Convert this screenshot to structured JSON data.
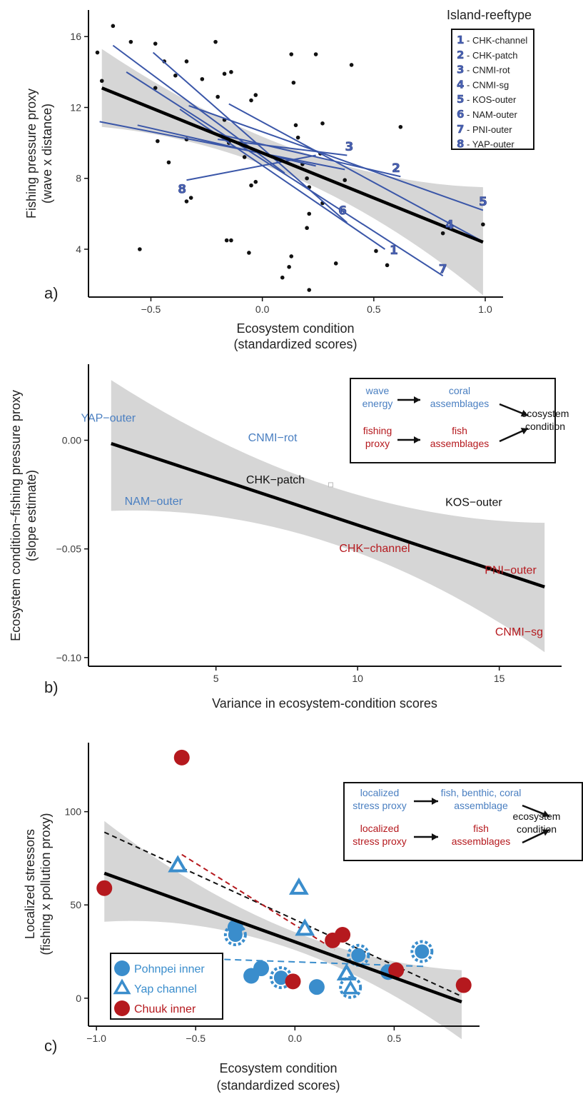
{
  "chart_data": [
    {
      "panel": "a)",
      "type": "scatter",
      "xlabel": [
        "Ecosystem condition",
        "(standardized scores)"
      ],
      "ylabel": [
        "Fishing pressure proxy",
        "(wave x distance)"
      ],
      "xticks": [
        -0.5,
        0.0,
        0.5,
        1.0
      ],
      "xtick_labels": [
        "−0.5",
        "0.0",
        "0.5",
        "1.0"
      ],
      "yticks": [
        4,
        8,
        12,
        16
      ],
      "xlim": [
        -0.78,
        1.08
      ],
      "ylim": [
        1.3,
        17.5
      ],
      "legend_title": "Island-reeftype",
      "legend_entries": [
        {
          "num": "1",
          "label": "- CHK-channel"
        },
        {
          "num": "2",
          "label": "- CHK-patch"
        },
        {
          "num": "3",
          "label": "- CNMI-rot"
        },
        {
          "num": "4",
          "label": "- CNMI-sg"
        },
        {
          "num": "5",
          "label": "- KOS-outer"
        },
        {
          "num": "6",
          "label": "- NAM-outer"
        },
        {
          "num": "7",
          "label": "- PNI-outer"
        },
        {
          "num": "8",
          "label": "- YAP-outer"
        }
      ],
      "points": [
        [
          -0.74,
          15.1
        ],
        [
          -0.67,
          16.6
        ],
        [
          -0.72,
          13.5
        ],
        [
          -0.59,
          15.7
        ],
        [
          -0.48,
          15.6
        ],
        [
          -0.48,
          13.1
        ],
        [
          -0.44,
          14.6
        ],
        [
          -0.34,
          14.6
        ],
        [
          -0.39,
          13.8
        ],
        [
          -0.27,
          13.6
        ],
        [
          -0.21,
          15.7
        ],
        [
          -0.17,
          13.9
        ],
        [
          -0.14,
          14.0
        ],
        [
          -0.2,
          12.6
        ],
        [
          -0.03,
          12.7
        ],
        [
          -0.17,
          11.3
        ],
        [
          -0.15,
          10.0
        ],
        [
          -0.05,
          12.4
        ],
        [
          -0.47,
          10.1
        ],
        [
          -0.42,
          8.9
        ],
        [
          -0.34,
          10.2
        ],
        [
          -0.08,
          9.2
        ],
        [
          -0.05,
          7.6
        ],
        [
          -0.03,
          7.8
        ],
        [
          -0.34,
          6.7
        ],
        [
          -0.32,
          6.9
        ],
        [
          -0.55,
          4.0
        ],
        [
          -0.16,
          4.5
        ],
        [
          -0.14,
          4.5
        ],
        [
          -0.06,
          3.8
        ],
        [
          0.13,
          15.0
        ],
        [
          0.24,
          15.0
        ],
        [
          0.4,
          14.4
        ],
        [
          0.14,
          13.4
        ],
        [
          0.15,
          11.0
        ],
        [
          0.27,
          11.1
        ],
        [
          0.16,
          10.3
        ],
        [
          0.18,
          8.8
        ],
        [
          0.2,
          8.0
        ],
        [
          0.21,
          7.5
        ],
        [
          0.21,
          6.0
        ],
        [
          0.27,
          6.6
        ],
        [
          0.2,
          5.2
        ],
        [
          0.37,
          7.9
        ],
        [
          0.26,
          9.4
        ],
        [
          0.12,
          3.0
        ],
        [
          0.13,
          3.6
        ],
        [
          0.09,
          2.4
        ],
        [
          0.21,
          1.7
        ],
        [
          0.33,
          3.2
        ],
        [
          0.51,
          3.9
        ],
        [
          0.56,
          3.1
        ],
        [
          0.62,
          10.9
        ],
        [
          0.81,
          4.9
        ],
        [
          0.99,
          5.4
        ]
      ],
      "overall_fit": {
        "x": [
          -0.72,
          0.99
        ],
        "y": [
          13.1,
          4.4
        ]
      },
      "site_lines": [
        {
          "num": "1",
          "x1": -0.37,
          "y1": 11.9,
          "x2": 0.55,
          "y2": 4.0,
          "label_at": [
            0.59,
            3.95
          ]
        },
        {
          "num": "2",
          "x1": -0.2,
          "y1": 10.5,
          "x2": 0.62,
          "y2": 8.1,
          "label_at": [
            0.6,
            8.6
          ]
        },
        {
          "num": "3",
          "x1": -0.2,
          "y1": 10.2,
          "x2": 0.38,
          "y2": 9.3,
          "label_at": [
            0.39,
            9.8
          ]
        },
        {
          "num": "4",
          "x1": -0.15,
          "y1": 12.2,
          "x2": 0.98,
          "y2": 4.5,
          "label_at": [
            0.84,
            5.4
          ]
        },
        {
          "num": "5",
          "x1": -0.33,
          "y1": 12.1,
          "x2": 0.99,
          "y2": 6.2,
          "label_at": [
            0.99,
            6.7
          ]
        },
        {
          "num": "6",
          "x1": -0.49,
          "y1": 15.1,
          "x2": 0.38,
          "y2": 5.5,
          "label_at": [
            0.36,
            6.2
          ]
        },
        {
          "num": "7",
          "x1": -0.61,
          "y1": 14.0,
          "x2": 0.81,
          "y2": 2.5,
          "label_at": [
            0.81,
            2.9
          ]
        },
        {
          "num": "8",
          "x1": -0.34,
          "y1": 7.9,
          "x2": 0.24,
          "y2": 9.3,
          "label_at": [
            -0.36,
            7.4
          ]
        },
        {
          "num": "",
          "x1": -0.73,
          "y1": 11.2,
          "x2": 0.37,
          "y2": 8.5,
          "label_at": null
        },
        {
          "num": "",
          "x1": -0.67,
          "y1": 15.5,
          "x2": 0.1,
          "y2": 8.3,
          "label_at": null
        },
        {
          "num": "",
          "x1": -0.56,
          "y1": 11.0,
          "x2": 0.24,
          "y2": 8.7,
          "label_at": null
        }
      ],
      "ci_band": {
        "x": [
          -0.72,
          0.99
        ],
        "upper": [
          15.3,
          7.5
        ],
        "lower": [
          10.9,
          1.4
        ],
        "mid_x": 0.17,
        "mid_upper": 9.6,
        "mid_lower": 8.0
      }
    },
    {
      "panel": "b)",
      "type": "scatter",
      "xlabel": "Variance in ecosystem-condition scores",
      "ylabel": [
        "Ecosystem condition~fishing pressure proxy",
        "(slope estimate)"
      ],
      "xticks": [
        5,
        10,
        15
      ],
      "yticks": [
        0.0,
        -0.05,
        -0.1
      ],
      "ytick_labels": [
        "0.00",
        "−0.05",
        "−0.10"
      ],
      "xlim": [
        0.5,
        17.2
      ],
      "ylim": [
        -0.104,
        0.035
      ],
      "labels": [
        {
          "text": "YAP−outer",
          "x": 1.2,
          "y": 0.0085,
          "color": "blue"
        },
        {
          "text": "CNMI−rot",
          "x": 7.0,
          "y": -0.0005,
          "color": "blue"
        },
        {
          "text": "CHK−patch",
          "x": 7.1,
          "y": -0.0198,
          "color": "black"
        },
        {
          "text": "NAM−outer",
          "x": 2.8,
          "y": -0.0298,
          "color": "blue"
        },
        {
          "text": "KOS−outer",
          "x": 14.1,
          "y": -0.0302,
          "color": "black"
        },
        {
          "text": "CHK−channel",
          "x": 10.6,
          "y": -0.0515,
          "color": "red"
        },
        {
          "text": "PNI−outer",
          "x": 15.4,
          "y": -0.0615,
          "color": "red"
        },
        {
          "text": "CNMI−sg",
          "x": 15.7,
          "y": -0.0898,
          "color": "red"
        }
      ],
      "marker": {
        "x": 9.05,
        "y": -0.0205
      },
      "fit": {
        "x": [
          1.3,
          16.6
        ],
        "y": [
          -0.0015,
          -0.0675
        ]
      },
      "ci_band": {
        "x": [
          1.3,
          16.6
        ],
        "upper": [
          0.0277,
          -0.038
        ],
        "lower": [
          -0.0325,
          -0.0975
        ],
        "mid_x": 9.0,
        "mid_upper": -0.021,
        "mid_lower": -0.047
      },
      "flow_box": {
        "rows": [
          {
            "left": [
              "wave",
              "energy"
            ],
            "mid": [
              "coral",
              "assemblages"
            ],
            "color": "blue"
          },
          {
            "left": [
              "fishing",
              "proxy"
            ],
            "mid": [
              "fish",
              "assemblages"
            ],
            "color": "red"
          }
        ],
        "right": [
          "ecosystem",
          "condition"
        ]
      }
    },
    {
      "panel": "c)",
      "type": "scatter",
      "xlabel": [
        "Ecosystem condition",
        "(standardized scores)"
      ],
      "ylabel": [
        "Localized stressors",
        "(fishing x pollution proxy)"
      ],
      "xticks": [
        -1.0,
        -0.5,
        0.0,
        0.5
      ],
      "xtick_labels": [
        "−1.0",
        "−0.5",
        "0.0",
        "0.5"
      ],
      "yticks": [
        0,
        50,
        100
      ],
      "xlim": [
        -1.04,
        0.93
      ],
      "ylim": [
        -15,
        137
      ],
      "legend_entries": [
        {
          "label": "Pohnpei inner",
          "color": "#3a8dcc",
          "shape": "circle"
        },
        {
          "label": "Yap channel",
          "color": "#3a8dcc",
          "shape": "triangle"
        },
        {
          "label": "Chuuk inner",
          "color": "#b5191e",
          "shape": "circle"
        }
      ],
      "pohnpei": [
        [
          -0.41,
          20
        ],
        [
          -0.3,
          38
        ],
        [
          -0.22,
          12
        ],
        [
          -0.17,
          16
        ],
        [
          0.11,
          6
        ],
        [
          0.47,
          14
        ]
      ],
      "pohnpei_dashed": [
        [
          -0.3,
          34
        ],
        [
          -0.07,
          11
        ],
        [
          0.32,
          23
        ],
        [
          0.64,
          25
        ]
      ],
      "yap": [
        [
          -0.59,
          71
        ],
        [
          0.02,
          59
        ],
        [
          0.05,
          37
        ],
        [
          0.26,
          13
        ]
      ],
      "yap_dashed": [
        [
          0.28,
          5
        ]
      ],
      "chuuk": [
        [
          -0.96,
          59
        ],
        [
          -0.57,
          129
        ],
        [
          -0.01,
          9
        ],
        [
          0.19,
          31
        ],
        [
          0.24,
          34
        ],
        [
          0.51,
          15
        ],
        [
          0.85,
          7
        ]
      ],
      "overall_fit": {
        "x": [
          -0.96,
          0.84
        ],
        "y": [
          67,
          -2
        ]
      },
      "black_dashed": {
        "x": [
          -0.96,
          0.84
        ],
        "y": [
          89,
          1
        ]
      },
      "red_dashed": {
        "x": [
          -0.57,
          0.2
        ],
        "y": [
          77,
          26
        ]
      },
      "blue_dashed": {
        "x": [
          -0.41,
          0.66
        ],
        "y": [
          21,
          17
        ]
      },
      "ci_band": {
        "x": [
          -0.96,
          0.84
        ],
        "upper": [
          95,
          15
        ],
        "lower": [
          41,
          -22
        ],
        "mid_x": -0.06,
        "mid_upper": 38,
        "mid_lower": 28
      },
      "flow_box": {
        "rows": [
          {
            "left": [
              "localized",
              "stress proxy"
            ],
            "mid": [
              "fish, benthic, coral",
              "assemblage"
            ],
            "color": "blue"
          },
          {
            "left": [
              "localized",
              "stress proxy"
            ],
            "mid": [
              "fish",
              "assemblages"
            ],
            "color": "red"
          }
        ],
        "right": [
          "ecosystem",
          "condition"
        ]
      }
    }
  ],
  "colors": {
    "site_line": "#3a56a8",
    "band": "#d6d6d6",
    "blue_text": "#4a7fc1",
    "red_text": "#b5191e",
    "pohnpei": "#3a8dcc",
    "chuuk": "#b5191e"
  }
}
